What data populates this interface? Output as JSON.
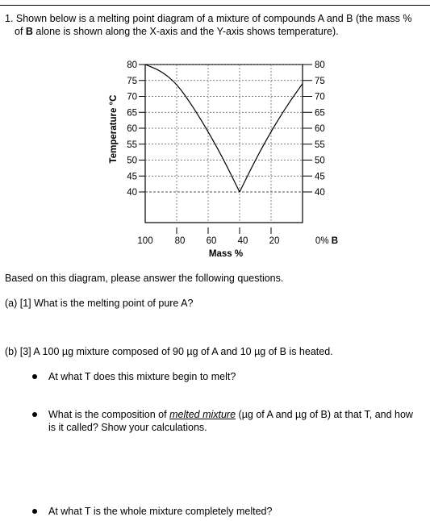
{
  "question": {
    "line1": "1. Shown below is a melting point diagram of a mixture of compounds A and B (the mass %",
    "line2_part1": "of ",
    "line2_bold": "B",
    "line2_part2": " alone is shown along the X-axis and the Y-axis shows temperature)."
  },
  "chart_data": {
    "type": "line",
    "title": "",
    "xlabel": "Mass %",
    "ylabel": "Temperature °C",
    "x_ticks": [
      "100",
      "80",
      "60",
      "40",
      "20",
      "0% B"
    ],
    "y_ticks": [
      "80",
      "75",
      "70",
      "65",
      "60",
      "55",
      "50",
      "45",
      "40"
    ],
    "y_ticks_right": [
      "80",
      "75",
      "70",
      "65",
      "60",
      "55",
      "50",
      "45",
      "40"
    ],
    "x_values_mass_pct_A": [
      100,
      80,
      60,
      40,
      20,
      0
    ],
    "ylim": [
      40,
      80
    ],
    "grid": true,
    "series": [
      {
        "points": [
          [
            100,
            80
          ],
          [
            90,
            78
          ],
          [
            80,
            74
          ],
          [
            70,
            67
          ],
          [
            60,
            59
          ],
          [
            50,
            50
          ],
          [
            40,
            40
          ]
        ]
      },
      {
        "points": [
          [
            40,
            40
          ],
          [
            30,
            50
          ],
          [
            20,
            59
          ],
          [
            10,
            67
          ],
          [
            0,
            74
          ]
        ]
      }
    ],
    "eutectic": {
      "mass_pct_A": 40,
      "temperature": 40
    }
  },
  "prompt": "Based on this diagram, please answer the following questions.",
  "part_a": "(a) [1] What is the melting point of pure A?",
  "part_b": {
    "before_mu1": "(b) [3] A 100 ",
    "unit": "µg",
    "mid1": " mixture composed of 90 ",
    "mid2": " of A and 10 ",
    "after": " of B is heated."
  },
  "bullets": {
    "b1": "At what T does this mixture begin to melt?",
    "b2_pre": "What is the composition of ",
    "b2_em": "melted mixture",
    "b2_mid": " (",
    "b2_unit1": "µg",
    "b2_mid2": " of A and ",
    "b2_unit2": "µg",
    "b2_post": " of B) at that T, and how",
    "b2_line2": "is it called? Show your calculations.",
    "b3": "At what T is the whole mixture completely melted?"
  }
}
